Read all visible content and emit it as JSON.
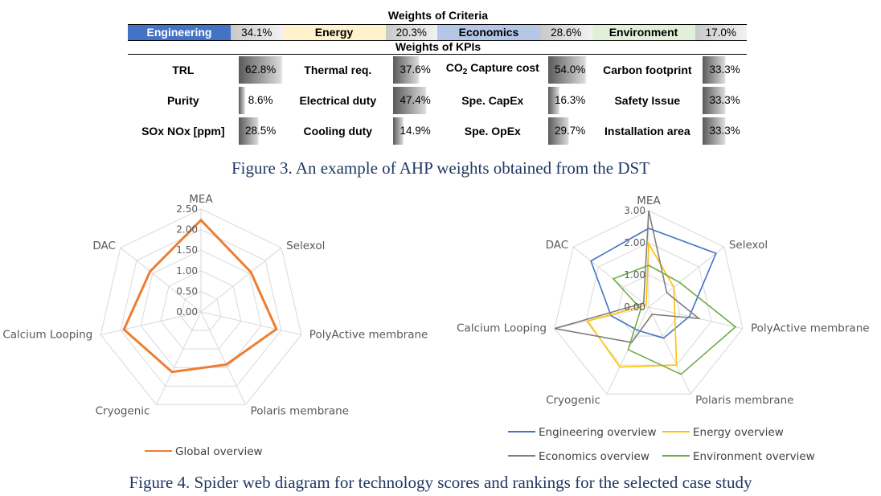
{
  "weights_table": {
    "criteria_title": "Weights of Criteria",
    "kpi_title": "Weights of KPIs",
    "criteria": [
      {
        "name": "Engineering",
        "value": "34.1%",
        "color": "#4472c4",
        "text_color": "#ffffff"
      },
      {
        "name": "Energy",
        "value": "20.3%",
        "color": "#fff2cc",
        "text_color": "#000000"
      },
      {
        "name": "Economics",
        "value": "28.6%",
        "color": "#b4c7e7",
        "text_color": "#000000"
      },
      {
        "name": "Environment",
        "value": "17.0%",
        "color": "#e2f0d9",
        "text_color": "#000000"
      }
    ],
    "kpi_rows": [
      [
        {
          "label": "TRL",
          "value": "62.8%",
          "fraction": 0.628
        },
        {
          "label": "Thermal req.",
          "value": "37.6%",
          "fraction": 0.376
        },
        {
          "label_main": "CO",
          "label_sub": "2",
          "label_rest": " Capture cost",
          "value": "54.0%",
          "fraction": 0.54
        },
        {
          "label": "Carbon footprint",
          "value": "33.3%",
          "fraction": 0.333
        }
      ],
      [
        {
          "label": "Purity",
          "value": "8.6%",
          "fraction": 0.086
        },
        {
          "label": "Electrical duty",
          "value": "47.4%",
          "fraction": 0.474
        },
        {
          "label": "Spe. CapEx",
          "value": "16.3%",
          "fraction": 0.163
        },
        {
          "label": "Safety Issue",
          "value": "33.3%",
          "fraction": 0.333
        }
      ],
      [
        {
          "label": "SOx NOx [ppm]",
          "value": "28.5%",
          "fraction": 0.285
        },
        {
          "label": "Cooling duty",
          "value": "14.9%",
          "fraction": 0.149
        },
        {
          "label": "Spe. OpEx",
          "value": "29.7%",
          "fraction": 0.297
        },
        {
          "label": "Installation area",
          "value": "33.3%",
          "fraction": 0.333
        }
      ]
    ]
  },
  "captions": {
    "figure3": "Figure 3. An example of AHP weights obtained from the DST",
    "figure4": "Figure 4. Spider web diagram for technology scores and rankings for the selected case study"
  },
  "chart_data": [
    {
      "type": "radar",
      "categories": [
        "MEA",
        "Selexol",
        "PolyActive membrane",
        "Polaris membrane",
        "Cryogenic",
        "Calcium Looping",
        "DAC"
      ],
      "ylim": [
        0,
        2.5
      ],
      "ticks": [
        "0.00",
        "0.50",
        "1.00",
        "1.50",
        "2.00",
        "2.50"
      ],
      "tick_values": [
        0,
        0.5,
        1.0,
        1.5,
        2.0,
        2.5
      ],
      "series": [
        {
          "name": "Global overview",
          "color": "#ed7d31",
          "values": [
            2.23,
            1.55,
            1.88,
            1.42,
            1.62,
            1.92,
            1.58
          ]
        }
      ],
      "legend": "bottom"
    },
    {
      "type": "radar",
      "categories": [
        "MEA",
        "Selexol",
        "PolyActive membrane",
        "Polaris membrane",
        "Cryogenic",
        "Calcium Looping",
        "DAC"
      ],
      "ylim": [
        0,
        3.0
      ],
      "ticks": [
        "0.00",
        "1.00",
        "2.00",
        "3.00"
      ],
      "tick_values": [
        0,
        1.0,
        2.0,
        3.0
      ],
      "series": [
        {
          "name": "Engineering overview",
          "color": "#4472c4",
          "values": [
            2.45,
            2.68,
            1.3,
            1.07,
            0.8,
            1.2,
            2.3
          ]
        },
        {
          "name": "Energy overview",
          "color": "#ffc000",
          "values": [
            1.97,
            1.0,
            0.83,
            2.0,
            2.07,
            1.95,
            0.1
          ]
        },
        {
          "name": "Economics overview",
          "color": "#7f7f7f",
          "values": [
            3.0,
            0.72,
            1.6,
            0.25,
            1.22,
            3.0,
            0.2
          ]
        },
        {
          "name": "Environment overview",
          "color": "#70ad47",
          "values": [
            1.3,
            1.23,
            2.77,
            2.32,
            1.47,
            0.25,
            1.41
          ]
        }
      ],
      "legend": "bottom"
    }
  ]
}
